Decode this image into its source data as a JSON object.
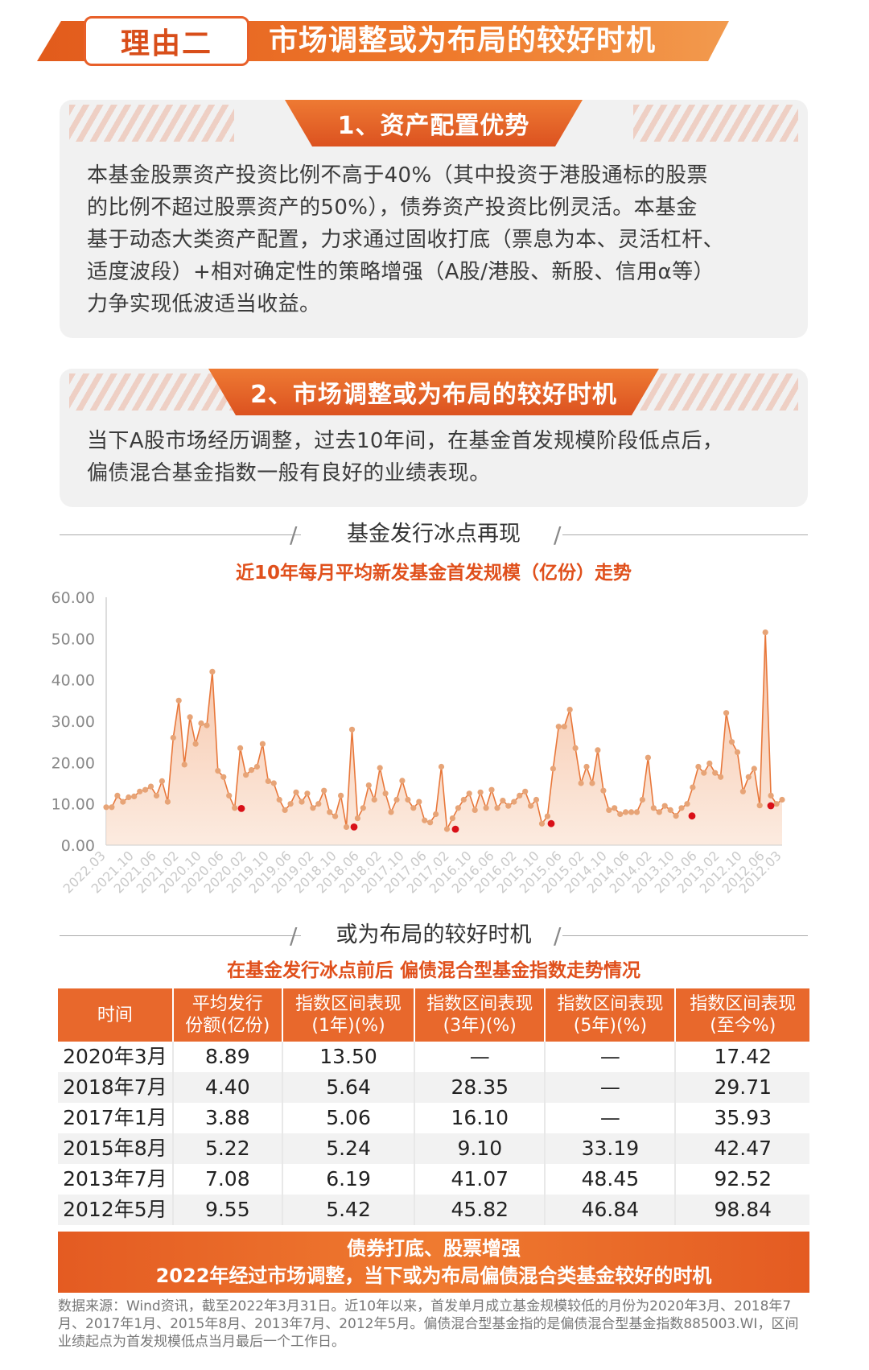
{
  "banner": {
    "tag": "理由二",
    "title": "市场调整或为布局的较好时机"
  },
  "card1": {
    "header": "1、资产配置优势",
    "lines": [
      "本基金股票资产投资比例不高于40%（其中投资于港股通标的股票",
      "的比例不超过股票资产的50%），债券资产投资比例灵活。本基金",
      "基于动态大类资产配置，力求通过固收打底（票息为本、灵活杠杆、",
      "适度波段）+相对确定性的策略增强（A股/港股、新股、信用α等）",
      "力争实现低波适当收益。"
    ]
  },
  "card2": {
    "header": "2、市场调整或为布局的较好时机",
    "lines": [
      "当下A股市场经历调整，过去10年间，在基金首发规模阶段低点后，",
      "偏债混合基金指数一般有良好的业绩表现。"
    ]
  },
  "section1": "基金发行冰点再现",
  "chart_title": "近10年每月平均新发基金首发规模（亿份）走势",
  "chart_data": {
    "type": "area",
    "title": "近10年每月平均新发基金首发规模（亿份）走势",
    "ylim": [
      0,
      60
    ],
    "yticks": [
      "0.00",
      "10.00",
      "20.00",
      "30.00",
      "40.00",
      "50.00",
      "60.00"
    ],
    "xticks": [
      "2022.03",
      "2021.10",
      "2021.06",
      "2021.02",
      "2020.10",
      "2020.06",
      "2020.02",
      "2019.10",
      "2019.06",
      "2019.02",
      "2018.10",
      "2018.06",
      "2018.02",
      "2017.10",
      "2017.06",
      "2017.02",
      "2016.10",
      "2016.06",
      "2016.02",
      "2015.10",
      "2015.06",
      "2015.02",
      "2014.10",
      "2014.06",
      "2014.02",
      "2013.10",
      "2013.06",
      "2013.02",
      "2012.10",
      "2012.06",
      "2012.03"
    ],
    "x_start": "2022.03",
    "x_end": "2012.03",
    "values": [
      9.2,
      9.2,
      12,
      10.5,
      11.6,
      11.8,
      13,
      13.4,
      14.2,
      12,
      15.5,
      10.5,
      26,
      35,
      19.5,
      31,
      24.5,
      29.5,
      29,
      42,
      18,
      16.5,
      12,
      9,
      23.5,
      17,
      18.2,
      19,
      24.5,
      15.5,
      15,
      11,
      8.5,
      10,
      12.8,
      10.5,
      12.5,
      9,
      10,
      13.2,
      8,
      7,
      12,
      4.4,
      28,
      6.5,
      9,
      14.5,
      11,
      18.7,
      12.5,
      8,
      11,
      15.6,
      11,
      9,
      10.5,
      6,
      5.5,
      7.5,
      19,
      3.9,
      6.5,
      9,
      11,
      12.5,
      8.5,
      12.8,
      9,
      13.4,
      9,
      10.8,
      9.5,
      10.5,
      12,
      13,
      9.5,
      11,
      5.2,
      7,
      18.5,
      28.7,
      28.7,
      32.8,
      23.5,
      15,
      19,
      15,
      23,
      13.2,
      8.5,
      9,
      7.5,
      8,
      8,
      8,
      11,
      21.2,
      9,
      8,
      9.5,
      8.5,
      7.1,
      9,
      10,
      14,
      19,
      17.5,
      19.8,
      17.5,
      16.5,
      32,
      25,
      22.5,
      13,
      16.5,
      18.5,
      9.6,
      51.5,
      12,
      10,
      11
    ],
    "highlights": [
      {
        "date": "2020.03",
        "value": 8.89
      },
      {
        "date": "2018.07",
        "value": 4.4
      },
      {
        "date": "2017.01",
        "value": 3.88
      },
      {
        "date": "2015.08",
        "value": 5.22
      },
      {
        "date": "2013.07",
        "value": 7.08
      },
      {
        "date": "2012.05",
        "value": 9.55
      }
    ],
    "colors": {
      "line": "#e8773a",
      "fill": "#f6c9ad",
      "marker": "#e7a477",
      "highlight": "#d91018"
    }
  },
  "section2": "或为布局的较好时机",
  "table_title": "在基金发行冰点前后 偏债混合型基金指数走势情况",
  "table": {
    "headers": [
      [
        "时间"
      ],
      [
        "平均发行",
        "份额(亿份)"
      ],
      [
        "指数区间表现",
        "(1年)(%)"
      ],
      [
        "指数区间表现",
        "(3年)(%)"
      ],
      [
        "指数区间表现",
        "(5年)(%)"
      ],
      [
        "指数区间表现",
        "(至今%)"
      ]
    ],
    "rows": [
      [
        "2020年3月",
        "8.89",
        "13.50",
        "—",
        "—",
        "17.42"
      ],
      [
        "2018年7月",
        "4.40",
        "5.64",
        "28.35",
        "—",
        "29.71"
      ],
      [
        "2017年1月",
        "3.88",
        "5.06",
        "16.10",
        "—",
        "35.93"
      ],
      [
        "2015年8月",
        "5.22",
        "5.24",
        "9.10",
        "33.19",
        "42.47"
      ],
      [
        "2013年7月",
        "7.08",
        "6.19",
        "41.07",
        "48.45",
        "92.52"
      ],
      [
        "2012年5月",
        "9.55",
        "5.42",
        "45.82",
        "46.84",
        "98.84"
      ]
    ]
  },
  "conclusion": {
    "line1": "债券打底、股票增强",
    "line2": "2022年经过市场调整，当下或为布局偏债混合类基金较好的时机"
  },
  "footnote": "数据来源：Wind资讯，截至2022年3月31日。近10年以来，首发单月成立基金规模较低的月份为2020年3月、2018年7月、2017年1月、2015年8月、2013年7月、2012年5月。偏债混合型基金指的是偏债混合型基金指数885003.WI，区间业绩起点为首发规模低点当月最后一个工作日。"
}
